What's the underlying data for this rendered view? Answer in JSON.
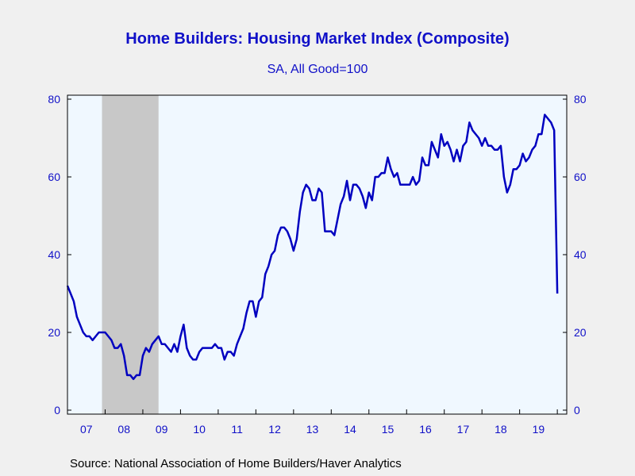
{
  "chart_data": {
    "type": "line",
    "title": "Home Builders: Housing Market Index (Composite)",
    "subtitle": "SA, All Good=100",
    "source": "Source:  National Association of Home Builders/Haver Analytics",
    "xlabel": "",
    "ylabel": "",
    "ylim": [
      0,
      80
    ],
    "y_ticks": [
      "0",
      "20",
      "40",
      "60",
      "80"
    ],
    "x_tick_labels": [
      "07",
      "08",
      "09",
      "10",
      "11",
      "12",
      "13",
      "14",
      "15",
      "16",
      "17",
      "18",
      "19"
    ],
    "x_range": [
      "2007-01",
      "2020-04"
    ],
    "grid": false,
    "recession_shading": [
      {
        "start": "2007-12",
        "end": "2009-06"
      }
    ],
    "colors": {
      "line": "#0000c0",
      "axis_text": "#1010c8",
      "plot_bg": "#f0f8ff",
      "recession": "#c8c8c8"
    },
    "series": [
      {
        "start": "2007-01",
        "frequency": "monthly",
        "values": [
          32,
          30,
          28,
          24,
          22,
          20,
          19,
          19,
          18,
          19,
          20,
          20,
          20,
          19,
          18,
          16,
          16,
          17,
          14,
          9,
          9,
          8,
          9,
          9,
          14,
          16,
          15,
          17,
          18,
          19,
          17,
          17,
          16,
          15,
          17,
          15,
          19,
          22,
          16,
          14,
          13,
          13,
          15,
          16,
          16,
          16,
          16,
          17,
          16,
          16,
          13,
          15,
          15,
          14,
          17,
          19,
          21,
          25,
          28,
          28,
          24,
          28,
          29,
          35,
          37,
          40,
          41,
          45,
          47,
          47,
          46,
          44,
          41,
          44,
          51,
          56,
          58,
          57,
          54,
          54,
          57,
          56,
          46,
          46,
          46,
          45,
          49,
          53,
          55,
          59,
          54,
          58,
          58,
          57,
          55,
          52,
          56,
          54,
          60,
          60,
          61,
          61,
          65,
          62,
          60,
          61,
          58,
          58,
          58,
          58,
          60,
          58,
          59,
          65,
          63,
          63,
          69,
          67,
          65,
          71,
          68,
          69,
          67,
          64,
          67,
          64,
          68,
          69,
          74,
          72,
          71,
          70,
          68,
          70,
          68,
          68,
          67,
          67,
          68,
          60,
          56,
          58,
          62,
          62,
          63,
          66,
          64,
          65,
          67,
          68,
          71,
          71,
          76,
          75,
          74,
          72,
          30
        ]
      }
    ]
  }
}
